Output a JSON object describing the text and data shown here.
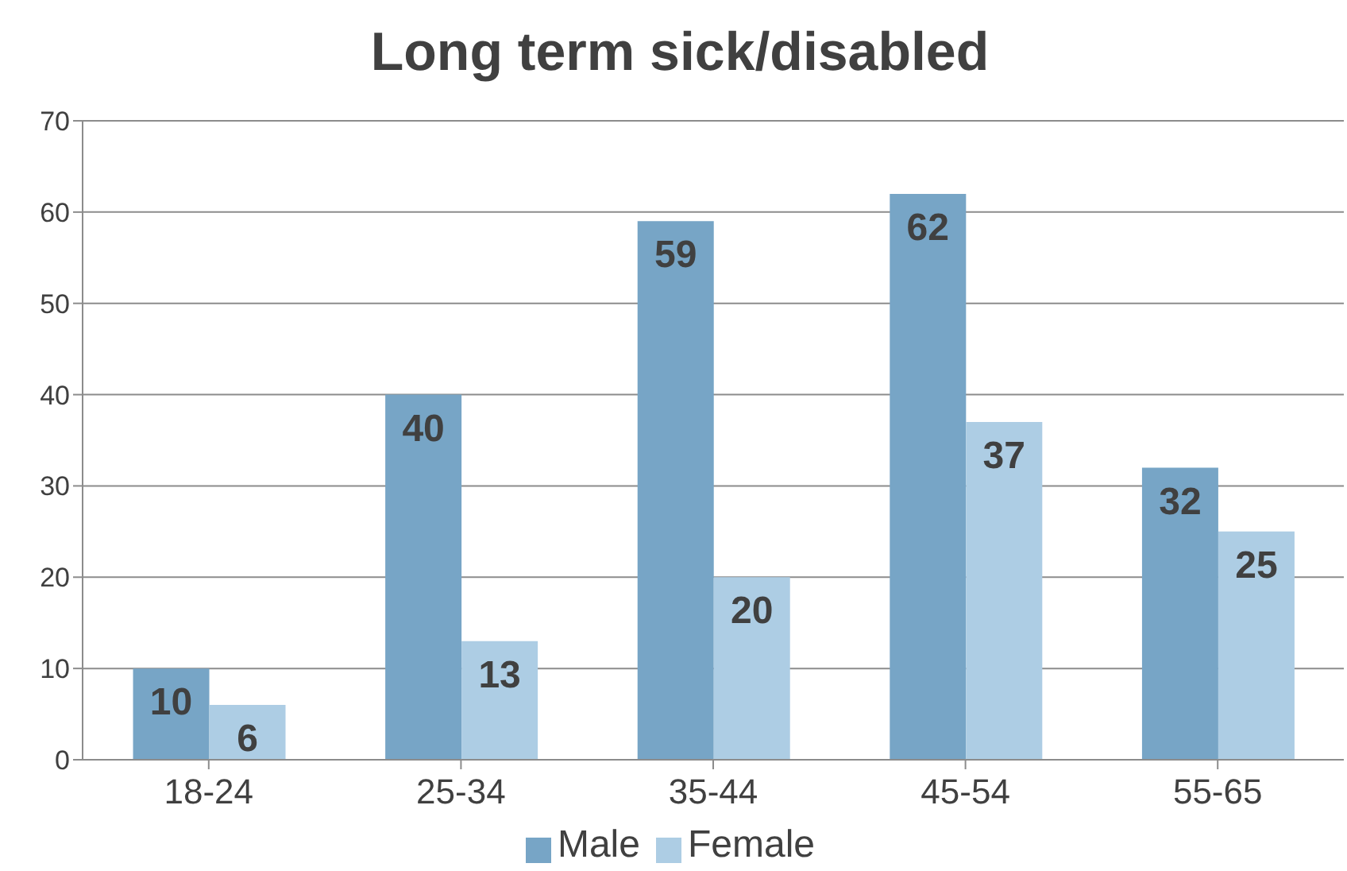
{
  "chart_data": {
    "type": "bar",
    "title": "Long term sick/disabled",
    "categories": [
      "18-24",
      "25-34",
      "35-44",
      "45-54",
      "55-65"
    ],
    "series": [
      {
        "name": "Male",
        "color": "#77a5c6",
        "values": [
          10,
          40,
          59,
          62,
          32
        ]
      },
      {
        "name": "Female",
        "color": "#adcde4",
        "values": [
          6,
          13,
          20,
          37,
          25
        ]
      }
    ],
    "ylim": [
      0,
      70
    ],
    "yticks": [
      0,
      10,
      20,
      30,
      40,
      50,
      60,
      70
    ],
    "grid": "y",
    "legend": "bottom",
    "data_labels": true
  }
}
